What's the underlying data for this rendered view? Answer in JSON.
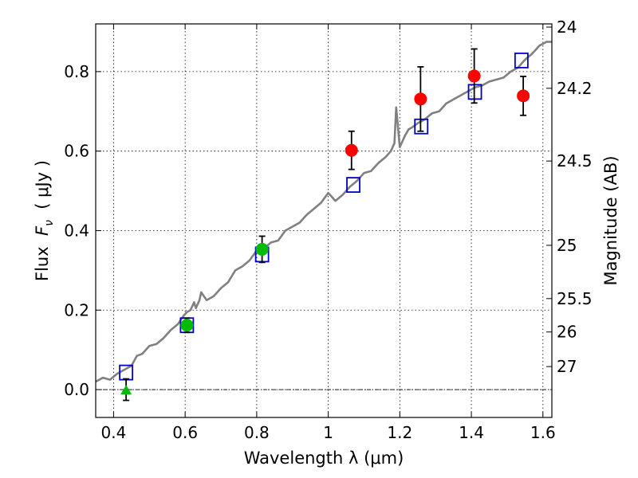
{
  "chart_data": {
    "type": "scatter",
    "xlabel": "Wavelength  λ (μm)",
    "ylabel_prefix": "Flux  ",
    "ylabel_var": "F",
    "ylabel_sub": "ν",
    "ylabel_suffix": "  ( μJy )",
    "ylabel_right": "Magnitude (AB)",
    "xlim": [
      0.35,
      1.625
    ],
    "ylim": [
      -0.07,
      0.92
    ],
    "grid": true,
    "x_ticks": [
      0.4,
      0.6,
      0.8,
      1.0,
      1.2,
      1.4,
      1.6
    ],
    "x_tick_labels": [
      "0.4",
      "0.6",
      "0.8",
      "1",
      "1.2",
      "1.4",
      "1.6"
    ],
    "y_ticks": [
      0.0,
      0.2,
      0.4,
      0.6,
      0.8
    ],
    "y_tick_labels": [
      "0.0",
      "0.2",
      "0.4",
      "0.6",
      "0.8"
    ],
    "mag_ticks": [
      {
        "label": "24",
        "flux": 0.912
      },
      {
        "label": "24.2",
        "flux": 0.758
      },
      {
        "label": "24.5",
        "flux": 0.575
      },
      {
        "label": "25",
        "flux": 0.363
      },
      {
        "label": "25.5",
        "flux": 0.229
      },
      {
        "label": "26",
        "flux": 0.145
      },
      {
        "label": "27",
        "flux": 0.058
      }
    ],
    "zero_line": 0.0,
    "series": [
      {
        "name": "Observed photometry (red)",
        "marker": "circle",
        "color": "#ff0000",
        "x": [
          1.065,
          1.258,
          1.408,
          1.545
        ],
        "y": [
          0.602,
          0.731,
          0.789,
          0.739
        ],
        "yerr": [
          0.048,
          0.081,
          0.068,
          0.049
        ]
      },
      {
        "name": "Observed photometry (green)",
        "marker": "circle",
        "color": "#00bb00",
        "x": [
          0.605,
          0.815
        ],
        "y": [
          0.162,
          0.353
        ],
        "yerr": [
          0.018,
          0.033
        ]
      },
      {
        "name": "Upper limit",
        "marker": "triangle",
        "color": "#00bb00",
        "x": [
          0.435
        ],
        "y": [
          0.0
        ],
        "yerr": [
          0.027
        ]
      },
      {
        "name": "Model band fluxes",
        "marker": "square",
        "color": "#0000cc",
        "x": [
          0.435,
          0.605,
          0.815,
          1.07,
          1.26,
          1.41,
          1.54
        ],
        "y": [
          0.043,
          0.162,
          0.34,
          0.515,
          0.662,
          0.749,
          0.828
        ]
      },
      {
        "name": "Best-fit SED template",
        "marker": "line",
        "color": "#808080",
        "x": [
          0.35,
          0.37,
          0.39,
          0.41,
          0.43,
          0.45,
          0.465,
          0.48,
          0.5,
          0.52,
          0.54,
          0.56,
          0.58,
          0.595,
          0.605,
          0.615,
          0.625,
          0.63,
          0.64,
          0.645,
          0.66,
          0.68,
          0.7,
          0.72,
          0.74,
          0.76,
          0.78,
          0.8,
          0.82,
          0.84,
          0.86,
          0.88,
          0.9,
          0.92,
          0.94,
          0.96,
          0.98,
          1.0,
          1.02,
          1.04,
          1.06,
          1.08,
          1.1,
          1.12,
          1.14,
          1.16,
          1.175,
          1.185,
          1.19,
          1.2,
          1.215,
          1.225,
          1.235,
          1.25,
          1.27,
          1.29,
          1.31,
          1.33,
          1.35,
          1.37,
          1.39,
          1.41,
          1.43,
          1.45,
          1.47,
          1.49,
          1.51,
          1.53,
          1.55,
          1.57,
          1.59,
          1.61,
          1.625
        ],
        "y": [
          0.02,
          0.03,
          0.025,
          0.04,
          0.05,
          0.06,
          0.085,
          0.09,
          0.11,
          0.115,
          0.13,
          0.15,
          0.165,
          0.185,
          0.195,
          0.2,
          0.22,
          0.205,
          0.225,
          0.245,
          0.225,
          0.235,
          0.255,
          0.27,
          0.3,
          0.31,
          0.325,
          0.35,
          0.355,
          0.37,
          0.375,
          0.4,
          0.41,
          0.42,
          0.44,
          0.455,
          0.47,
          0.495,
          0.475,
          0.49,
          0.51,
          0.525,
          0.545,
          0.55,
          0.57,
          0.585,
          0.6,
          0.62,
          0.71,
          0.61,
          0.64,
          0.655,
          0.66,
          0.67,
          0.68,
          0.695,
          0.7,
          0.72,
          0.73,
          0.74,
          0.75,
          0.76,
          0.765,
          0.775,
          0.78,
          0.785,
          0.8,
          0.81,
          0.83,
          0.845,
          0.865,
          0.875,
          0.875
        ]
      }
    ]
  }
}
